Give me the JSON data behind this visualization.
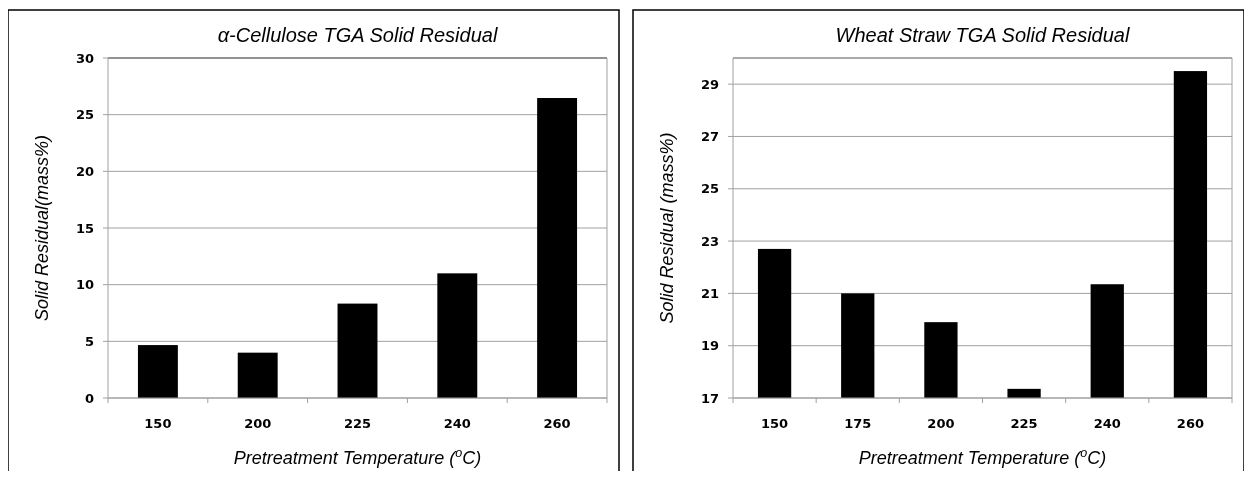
{
  "chart_data": [
    {
      "type": "bar",
      "title": "α-Cellulose TGA Solid Residual",
      "xlabel": "Pretreatment Temperature ($^{o}$C)",
      "ylabel": "Solid Residual(mass%)",
      "categories": [
        "150",
        "200",
        "225",
        "240",
        "260"
      ],
      "values": [
        4.67,
        4.0,
        8.33,
        11.0,
        26.47
      ],
      "color": "#000000",
      "ylim": [
        0,
        30
      ],
      "yticks": [
        0,
        5,
        10,
        15,
        20,
        25,
        30
      ],
      "grid": "y"
    },
    {
      "type": "bar",
      "title": "Wheat Straw TGA Solid Residual",
      "xlabel": "Pretreatment Temperature ($^{o}$C)",
      "ylabel": "Solid Residual (mass%)",
      "categories": [
        "150",
        "175",
        "200",
        "225",
        "240",
        "260"
      ],
      "values": [
        22.7,
        21.0,
        19.9,
        17.35,
        21.35,
        29.5
      ],
      "color": "#000000",
      "ylim": [
        17,
        30
      ],
      "yticks": [
        17,
        19,
        21,
        23,
        25,
        27,
        29
      ],
      "grid": "y"
    }
  ]
}
